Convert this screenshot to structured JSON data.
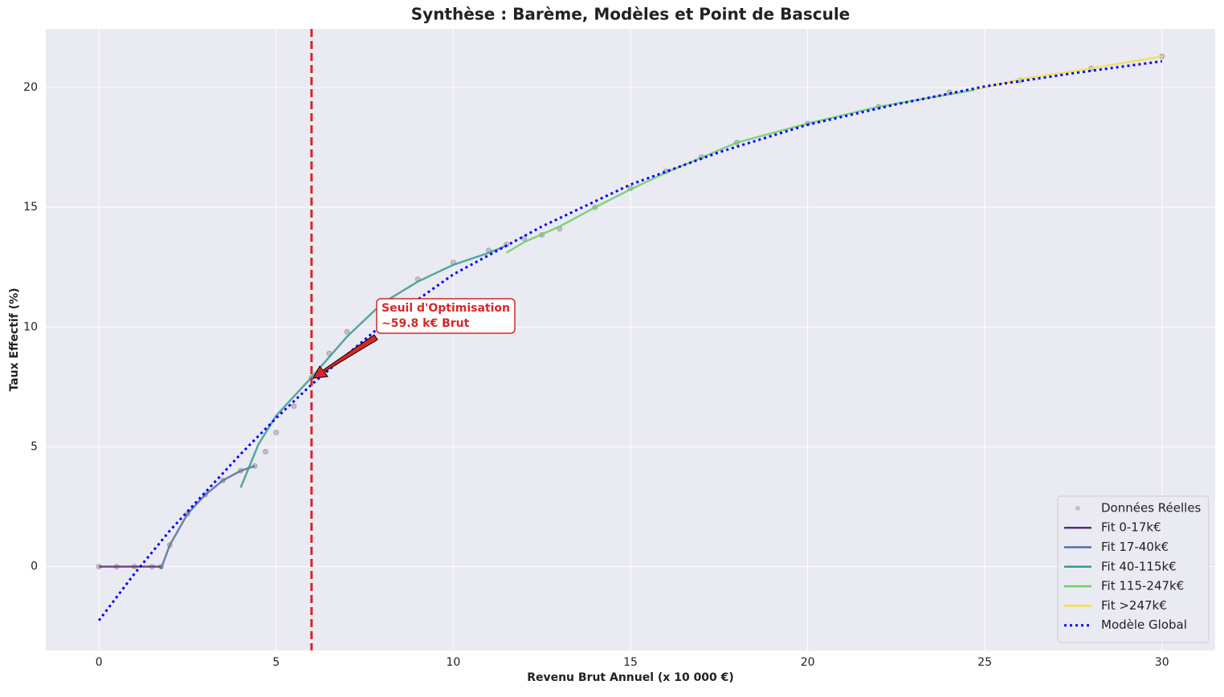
{
  "chart_data": {
    "type": "line",
    "title": "Synthèse : Barème, Modèles et Point de Bascule",
    "xlabel": "Revenu Brut Annuel (x 10 000 €)",
    "ylabel": "Taux Effectif (%)",
    "xlim": [
      -1.5,
      31.5
    ],
    "ylim": [
      -3.5,
      22.45
    ],
    "xticks": [
      0,
      5,
      10,
      15,
      20,
      25,
      30
    ],
    "yticks": [
      0,
      5,
      10,
      15,
      20
    ],
    "grid": true,
    "legend": "lower right",
    "vline": {
      "x": 6,
      "color": "#d62728"
    },
    "annotation": [
      "Seuil d'Optimisation",
      "~59.8 k€ Brut"
    ],
    "series": [
      {
        "name": "Données Réelles",
        "type": "scatter",
        "color": "#999999",
        "x": [
          0,
          0.5,
          1,
          1.5,
          1.75,
          2,
          2.5,
          3,
          3.5,
          4,
          4.4,
          4.7,
          5,
          5.5,
          6,
          6.5,
          7,
          8,
          9,
          10,
          11,
          11.5,
          12,
          12.5,
          13,
          14,
          15,
          16,
          17,
          18,
          20,
          22,
          24,
          26,
          28,
          30
        ],
        "values": [
          0,
          0,
          0,
          0,
          0,
          0.9,
          2.2,
          3.0,
          3.6,
          4.0,
          4.2,
          4.8,
          5.6,
          6.7,
          7.9,
          8.9,
          9.8,
          11.1,
          12.0,
          12.7,
          13.2,
          13.45,
          13.7,
          13.85,
          14.1,
          15.0,
          15.8,
          16.5,
          17.1,
          17.7,
          18.5,
          19.2,
          19.8,
          20.3,
          20.8,
          21.3
        ]
      },
      {
        "name": "Fit 0-17k€",
        "type": "line",
        "color": "#5b2c79",
        "x": [
          0,
          1.75
        ],
        "values": [
          0,
          0
        ]
      },
      {
        "name": "Fit 17-40k€",
        "type": "line",
        "color": "#55709f",
        "x": [
          1.75,
          2,
          2.5,
          3,
          3.5,
          4,
          4.4
        ],
        "values": [
          -0.1,
          0.9,
          2.2,
          3.0,
          3.6,
          4.0,
          4.2
        ]
      },
      {
        "name": "Fit 40-115k€",
        "type": "line",
        "color": "#3a9a92",
        "x": [
          4,
          4.5,
          5,
          5.5,
          6,
          7,
          8,
          9,
          10,
          11,
          11.5
        ],
        "values": [
          3.3,
          5.1,
          6.3,
          7.1,
          7.9,
          9.6,
          11.0,
          11.9,
          12.6,
          13.1,
          13.4
        ]
      },
      {
        "name": "Fit 115-247k€",
        "type": "line",
        "color": "#6bcf6a",
        "x": [
          11.5,
          12,
          13,
          14,
          15,
          16,
          18,
          20,
          22,
          24.7
        ],
        "values": [
          13.1,
          13.55,
          14.2,
          15.0,
          15.75,
          16.45,
          17.7,
          18.5,
          19.2,
          19.9
        ]
      },
      {
        "name": "Fit >247k€",
        "type": "line",
        "color": "#f3df45",
        "x": [
          24.7,
          26,
          28,
          30
        ],
        "values": [
          19.9,
          20.35,
          20.8,
          21.3
        ]
      },
      {
        "name": "Modèle Global",
        "type": "line",
        "style": "dotted",
        "color": "#0000ff",
        "x": [
          0,
          1,
          2,
          3,
          4,
          5,
          6,
          8,
          10,
          12.5,
          15,
          17.5,
          20,
          22.5,
          25,
          27.5,
          30
        ],
        "values": [
          -2.25,
          -0.3,
          1.5,
          3.1,
          4.7,
          6.2,
          7.6,
          10.1,
          12.2,
          14.2,
          15.95,
          17.3,
          18.45,
          19.3,
          20.05,
          20.6,
          21.1
        ]
      }
    ]
  }
}
